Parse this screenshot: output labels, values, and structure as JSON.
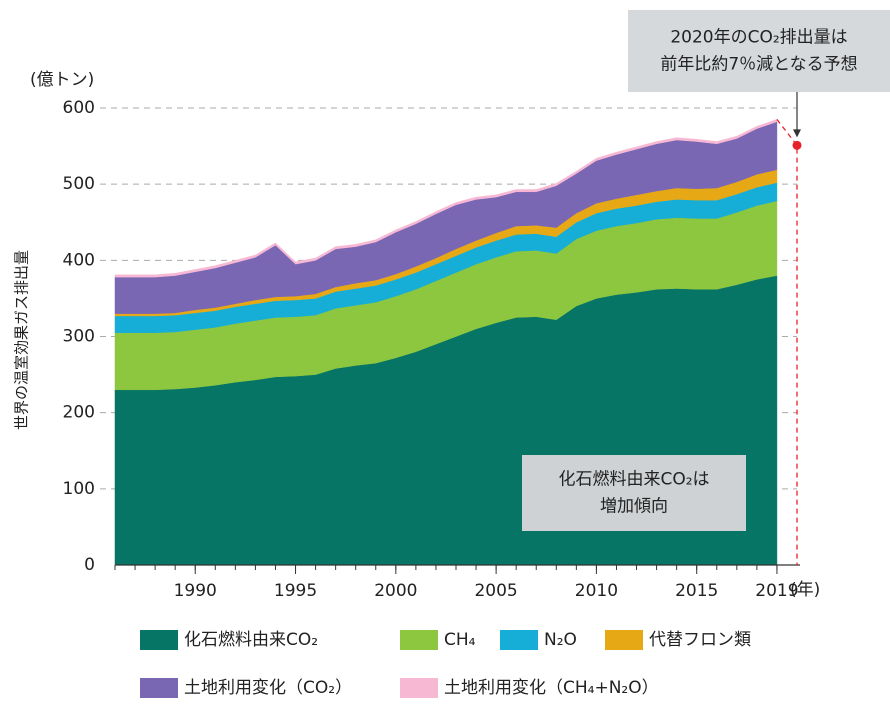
{
  "chart_data": {
    "type": "stacked_area",
    "y_unit": "(億トン)",
    "y_label": "世界の温室効果ガス排出量",
    "x_unit": "(年)",
    "x": [
      1986,
      1987,
      1988,
      1989,
      1990,
      1991,
      1992,
      1993,
      1994,
      1995,
      1996,
      1997,
      1998,
      1999,
      2000,
      2001,
      2002,
      2003,
      2004,
      2005,
      2006,
      2007,
      2008,
      2009,
      2010,
      2011,
      2012,
      2013,
      2014,
      2015,
      2016,
      2017,
      2018,
      2019
    ],
    "xlim": [
      1986,
      2020
    ],
    "xticks": [
      1990,
      1995,
      2000,
      2005,
      2010,
      2015,
      2019
    ],
    "ylim": [
      0,
      600
    ],
    "yticks": [
      0,
      100,
      200,
      300,
      400,
      500,
      600
    ],
    "grid": true,
    "series": [
      {
        "name": "化石燃料由来CO₂",
        "color": "#067565",
        "values": [
          230,
          230,
          230,
          231,
          233,
          236,
          240,
          243,
          247,
          248,
          250,
          258,
          262,
          265,
          272,
          280,
          290,
          300,
          310,
          318,
          325,
          326,
          322,
          340,
          350,
          355,
          358,
          362,
          363,
          362,
          362,
          368,
          375,
          380
        ]
      },
      {
        "name": "CH₄",
        "color": "#8dc63f",
        "values": [
          75,
          75,
          75,
          75,
          76,
          76,
          77,
          78,
          78,
          78,
          78,
          79,
          79,
          80,
          81,
          82,
          83,
          84,
          85,
          86,
          87,
          87,
          87,
          88,
          89,
          90,
          91,
          92,
          93,
          93,
          93,
          95,
          97,
          98
        ]
      },
      {
        "name": "N₂O",
        "color": "#16aed6",
        "values": [
          22,
          22,
          22,
          22,
          22,
          22,
          22,
          22,
          22,
          22,
          22,
          22,
          22,
          22,
          22,
          22,
          22,
          22,
          22,
          22,
          22,
          22,
          22,
          22,
          23,
          23,
          23,
          23,
          24,
          24,
          24,
          24,
          24,
          24
        ]
      },
      {
        "name": "代替フロン類",
        "color": "#e7a816",
        "values": [
          3,
          3,
          3,
          3,
          4,
          4,
          4,
          5,
          5,
          5,
          6,
          6,
          7,
          7,
          7,
          8,
          8,
          9,
          9,
          10,
          11,
          11,
          12,
          12,
          13,
          13,
          14,
          14,
          15,
          15,
          16,
          16,
          17,
          17
        ]
      },
      {
        "name": "土地利用変化（CO₂）",
        "color": "#7a67b4",
        "values": [
          48,
          48,
          48,
          49,
          50,
          52,
          54,
          56,
          68,
          42,
          44,
          50,
          48,
          50,
          55,
          56,
          58,
          58,
          54,
          47,
          45,
          44,
          55,
          52,
          56,
          58,
          60,
          62,
          63,
          62,
          58,
          57,
          60,
          63
        ]
      },
      {
        "name": "土地利用変化（CH₄+N₂O）",
        "color": "#f7b8d4",
        "values": [
          3,
          3,
          3,
          3,
          3,
          3,
          3,
          3,
          3,
          3,
          3,
          3,
          3,
          3,
          3,
          3,
          3,
          3,
          3,
          3,
          3,
          3,
          3,
          3,
          3,
          3,
          3,
          3,
          3,
          3,
          3,
          3,
          3,
          3
        ]
      }
    ],
    "forecast": {
      "x": 2020,
      "value": 551,
      "color": "#e8202a"
    },
    "annotations": [
      {
        "lines": [
          "2020年のCO₂排出量は",
          "前年比約7％減となる予想"
        ]
      },
      {
        "lines": [
          "化石燃料由来CO₂は",
          "増加傾向"
        ]
      }
    ]
  }
}
